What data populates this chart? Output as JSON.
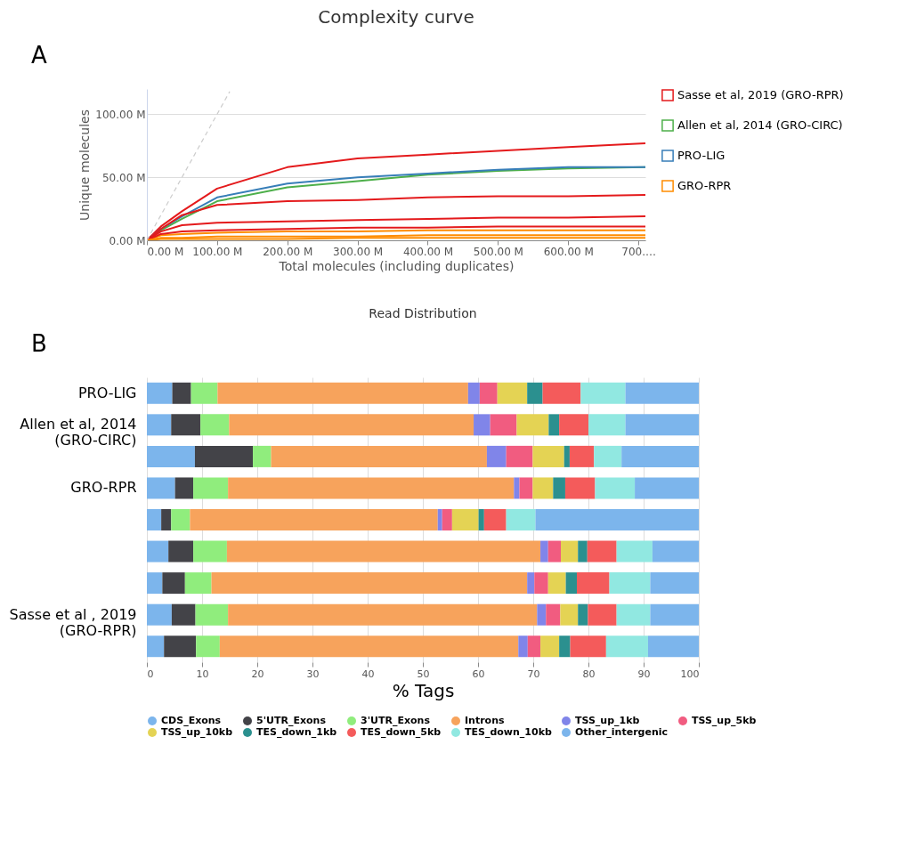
{
  "chart_data": [
    {
      "type": "line",
      "title": "Complexity curve",
      "xlabel": "Total molecules (including duplicates)",
      "ylabel": "Unique molecules",
      "annotations": [
        "A"
      ],
      "x": [
        0,
        20,
        50,
        100,
        200,
        300,
        400,
        500,
        600,
        710
      ],
      "xlim": [
        0,
        710
      ],
      "xticks": [
        {
          "value": 0,
          "label": "0.00 M"
        },
        {
          "value": 100,
          "label": "100.00 M"
        },
        {
          "value": 200,
          "label": "200.00 M"
        },
        {
          "value": 300,
          "label": "300.00 M"
        },
        {
          "value": 400,
          "label": "400.00 M"
        },
        {
          "value": 500,
          "label": "500.00 M"
        },
        {
          "value": 600,
          "label": "600.00 M"
        },
        {
          "value": 700,
          "label": "700.…"
        }
      ],
      "ylim": [
        0,
        120
      ],
      "yticks": [
        {
          "value": 0,
          "label": "0.00 M"
        },
        {
          "value": 50,
          "label": "50.00 M"
        },
        {
          "value": 100,
          "label": "100.00 M"
        }
      ],
      "grid": "y",
      "legend": "right",
      "marker": "none",
      "line_style": "solid",
      "series": [
        {
          "name": "Sasse et al, 2019 (GRO-RPR)",
          "color": "#e41a1c",
          "values": [
            0,
            11,
            23,
            41,
            58,
            65,
            68,
            71,
            74,
            77
          ]
        },
        {
          "name": "Allen et al, 2014 (GRO-CIRC)",
          "color": "#4daf4a",
          "values": [
            0,
            8,
            17,
            31,
            42,
            47,
            52,
            55,
            57,
            58
          ]
        },
        {
          "name": "PRO-LIG",
          "color": "#377eb8",
          "values": [
            0,
            9,
            19,
            34,
            45,
            50,
            53,
            56,
            58,
            58
          ]
        },
        {
          "name": "GRO-RPR",
          "color": "#ff8c00",
          "values": [
            0,
            4,
            5,
            6,
            7,
            7,
            8,
            8,
            8,
            8
          ]
        },
        {
          "color": "#e41a1c",
          "values": [
            0,
            9,
            20,
            28,
            31,
            32,
            34,
            35,
            35,
            36
          ]
        },
        {
          "color": "#e41a1c",
          "values": [
            0,
            7,
            12,
            14,
            15,
            16,
            17,
            18,
            18,
            19
          ]
        },
        {
          "color": "#e41a1c",
          "values": [
            0,
            5,
            7,
            8,
            9,
            10,
            10,
            11,
            11,
            11
          ]
        },
        {
          "color": "#ff8c00",
          "values": [
            0,
            2,
            2,
            3,
            3,
            3,
            4,
            4,
            4,
            4
          ]
        },
        {
          "color": "#ff8c00",
          "values": [
            0,
            1,
            1,
            1,
            1,
            2,
            2,
            2,
            2,
            2
          ]
        },
        {
          "color": "#cccccc",
          "line_style": "dashed",
          "x": [
            0,
            118
          ],
          "values": [
            0,
            118
          ]
        }
      ]
    },
    {
      "type": "bar",
      "orientation": "horizontal",
      "stacked": true,
      "title": "Read Distribution",
      "xlabel": "% Tags",
      "annotations": [
        "B"
      ],
      "categories": [
        "PRO-LIG",
        "Allen et al, 2014 (GRO-CIRC)",
        null,
        "GRO-RPR",
        null,
        null,
        null,
        "Sasse et al , 2019 (GRO-RPR)",
        null
      ],
      "xlim": [
        0,
        100
      ],
      "xticks": [
        0,
        10,
        20,
        30,
        40,
        50,
        60,
        70,
        80,
        90,
        100
      ],
      "grid": "x",
      "legend": "bottom",
      "series": [
        {
          "name": "CDS_Exons",
          "color": "#7cb5ec",
          "values": [
            4.6,
            4.4,
            8.7,
            5.1,
            2.6,
            3.9,
            2.8,
            4.5,
            3.1
          ]
        },
        {
          "name": "5'UTR_Exons",
          "color": "#434348",
          "values": [
            3.4,
            5.3,
            10.5,
            3.3,
            1.8,
            4.5,
            4.1,
            4.3,
            5.8
          ]
        },
        {
          "name": "3'UTR_Exons",
          "color": "#90ed7d",
          "values": [
            4.8,
            5.2,
            3.3,
            6.3,
            3.4,
            6.1,
            4.8,
            5.9,
            4.3
          ]
        },
        {
          "name": "Introns",
          "color": "#f7a35c",
          "values": [
            45.4,
            44.3,
            39.1,
            51.8,
            44.9,
            56.8,
            57.2,
            56.0,
            54.1
          ]
        },
        {
          "name": "TSS_up_1kb",
          "color": "#8085e9",
          "values": [
            2.1,
            3.0,
            3.5,
            1.0,
            0.8,
            1.4,
            1.3,
            1.6,
            1.7
          ]
        },
        {
          "name": "TSS_up_5kb",
          "color": "#f15c80",
          "values": [
            3.2,
            4.8,
            4.8,
            2.4,
            1.8,
            2.3,
            2.5,
            2.6,
            2.3
          ]
        },
        {
          "name": "TSS_up_10kb",
          "color": "#e4d354",
          "values": [
            5.4,
            5.8,
            5.7,
            3.7,
            4.8,
            3.1,
            3.2,
            3.2,
            3.4
          ]
        },
        {
          "name": "TES_down_1kb",
          "color": "#2b908f",
          "values": [
            2.8,
            1.9,
            1.0,
            2.2,
            1.0,
            1.7,
            2.0,
            1.8,
            2.0
          ]
        },
        {
          "name": "TES_down_5kb",
          "color": "#f45b5b",
          "values": [
            6.9,
            5.3,
            4.4,
            5.4,
            4.0,
            5.3,
            5.9,
            5.2,
            6.5
          ]
        },
        {
          "name": "TES_down_10kb",
          "color": "#91e8e1",
          "values": [
            8.1,
            6.7,
            5.0,
            7.2,
            5.3,
            6.5,
            7.4,
            6.1,
            7.6
          ]
        },
        {
          "name": "Other_intergenic",
          "color": "#7cb5ec",
          "values": [
            13.3,
            13.3,
            14.0,
            11.6,
            29.6,
            8.4,
            8.8,
            8.8,
            9.2
          ]
        }
      ]
    }
  ]
}
